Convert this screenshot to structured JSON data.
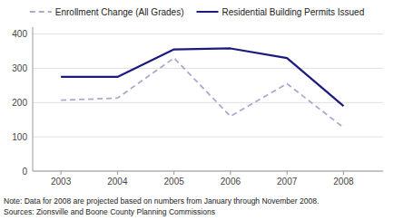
{
  "chart_data": {
    "type": "line",
    "x": [
      2003,
      2004,
      2005,
      2006,
      2007,
      2008
    ],
    "series": [
      {
        "name": "Enrollment Change (All Grades)",
        "color": "#aaaacc",
        "line_style": "dashed",
        "values": [
          207,
          213,
          330,
          160,
          255,
          127
        ]
      },
      {
        "name": "Residential Building Permits Issued",
        "color": "#1a1a80",
        "line_style": "solid",
        "values": [
          275,
          275,
          355,
          358,
          330,
          190
        ]
      }
    ],
    "xlim": [
      2002.5,
      2008.7
    ],
    "xticks": [
      2003,
      2004,
      2005,
      2006,
      2007,
      2008
    ],
    "ylim": [
      0,
      420
    ],
    "yticks": [
      0,
      100,
      200,
      300,
      400
    ],
    "grid": true,
    "legend": "top",
    "annotations": [
      "Note: Data for 2008 are projected based on numbers from January through November 2008.",
      "Sources: Zionsville and Boone County Planning Commissions"
    ]
  }
}
